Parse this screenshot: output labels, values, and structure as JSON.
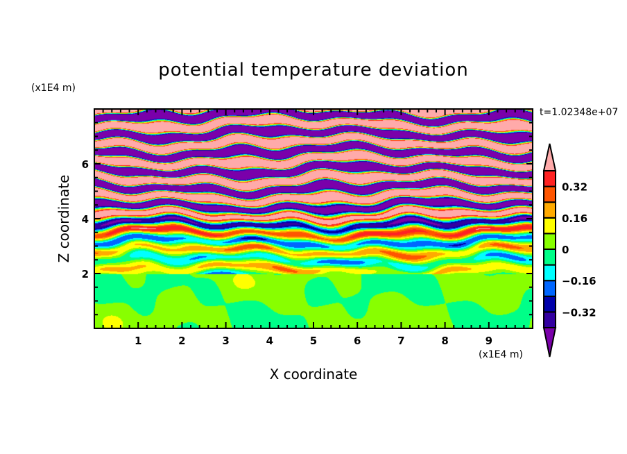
{
  "chart_data": {
    "type": "heatmap",
    "subtype": "filled-contour",
    "title": "potential temperature deviation",
    "xlabel": "X coordinate",
    "ylabel": "Z coordinate",
    "x_unit": "(x1E4 m)",
    "z_unit": "(x1E4 m)",
    "time_label": "t=1.02348e+07",
    "xlim": [
      0,
      10
    ],
    "ylim": [
      0,
      8
    ],
    "x_ticks": [
      1,
      2,
      3,
      4,
      5,
      6,
      7,
      8,
      9
    ],
    "x_tick_labels": [
      "1",
      "2",
      "3",
      "4",
      "5",
      "6",
      "7",
      "8",
      "9"
    ],
    "y_ticks": [
      2,
      4,
      6
    ],
    "y_tick_labels": [
      "2",
      "4",
      "6"
    ],
    "x_minor_step": 0.2,
    "y_minor_step": 0.5,
    "colorbar": {
      "levels": [
        -0.4,
        -0.32,
        -0.24,
        -0.16,
        -0.08,
        0,
        0.08,
        0.16,
        0.24,
        0.32,
        0.4
      ],
      "labels": [
        {
          "value": 0.32,
          "text": "0.32"
        },
        {
          "value": 0.16,
          "text": "0.16"
        },
        {
          "value": 0,
          "text": "0"
        },
        {
          "value": -0.16,
          "text": "−0.16"
        },
        {
          "value": -0.32,
          "text": "−0.32"
        }
      ],
      "colors": [
        "#7a00aa",
        "#3300a0",
        "#0000aa",
        "#0066ff",
        "#00ffff",
        "#00ff88",
        "#88ff00",
        "#ffff00",
        "#ffaa00",
        "#ff5500",
        "#ff2222",
        "#ffaaaa"
      ],
      "extend": "both"
    },
    "field_description_regions": [
      {
        "z_range": [
          0,
          2
        ],
        "dominant_range": [
          -0.08,
          0.08
        ]
      },
      {
        "z_range": [
          2,
          5
        ],
        "dominant_range": [
          -0.4,
          0.4
        ]
      },
      {
        "z_range": [
          5,
          8
        ],
        "dominant_range": [
          "<-0.4",
          ">0.4"
        ]
      }
    ]
  }
}
